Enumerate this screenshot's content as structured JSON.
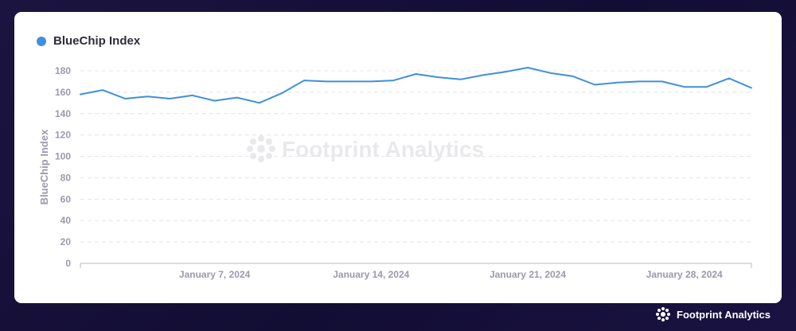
{
  "watermark": "Footprint Analytics",
  "footer_brand": "Footprint Analytics",
  "colors": {
    "series": "#3f8fdc",
    "axis_text": "#9a9aac",
    "grid": "#e4e4ec"
  },
  "chart_data": {
    "type": "line",
    "title": "",
    "ylabel": "BlueChip Index",
    "xlabel": "",
    "ylim": [
      0,
      180
    ],
    "yticks": [
      0,
      20,
      40,
      60,
      80,
      100,
      120,
      140,
      160,
      180
    ],
    "x_tick_labels": [
      "January 7, 2024",
      "January 14, 2024",
      "January 21, 2024",
      "January 28, 2024"
    ],
    "x_tick_dates": [
      "2024-01-07",
      "2024-01-14",
      "2024-01-21",
      "2024-01-28"
    ],
    "x_range": [
      "2024-01-01",
      "2024-01-31"
    ],
    "grid": true,
    "legend_position": "top-left",
    "series": [
      {
        "name": "BlueChip Index",
        "x": [
          "2024-01-01",
          "2024-01-02",
          "2024-01-03",
          "2024-01-04",
          "2024-01-05",
          "2024-01-06",
          "2024-01-07",
          "2024-01-08",
          "2024-01-09",
          "2024-01-10",
          "2024-01-11",
          "2024-01-12",
          "2024-01-13",
          "2024-01-14",
          "2024-01-15",
          "2024-01-16",
          "2024-01-17",
          "2024-01-18",
          "2024-01-19",
          "2024-01-20",
          "2024-01-21",
          "2024-01-22",
          "2024-01-23",
          "2024-01-24",
          "2024-01-25",
          "2024-01-26",
          "2024-01-27",
          "2024-01-28",
          "2024-01-29",
          "2024-01-30",
          "2024-01-31"
        ],
        "values": [
          158,
          162,
          154,
          156,
          154,
          157,
          152,
          155,
          150,
          159,
          171,
          170,
          170,
          170,
          171,
          177,
          174,
          172,
          176,
          179,
          183,
          178,
          175,
          167,
          169,
          170,
          170,
          165,
          165,
          173,
          164
        ]
      }
    ]
  }
}
